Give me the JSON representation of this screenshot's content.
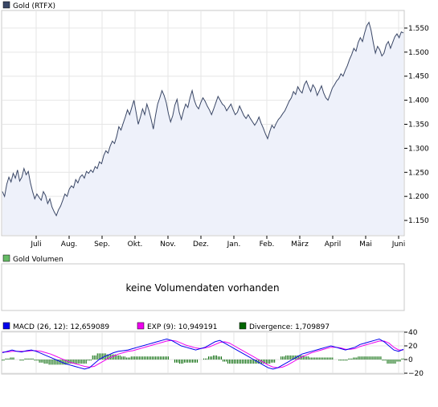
{
  "chart_data": [
    {
      "type": "area",
      "legend": {
        "label": "Gold (RTFX)",
        "color": "#3a4766"
      },
      "x_tick_labels": [
        "Juli",
        "Aug.",
        "Sep.",
        "Okt.",
        "Nov.",
        "Dez.",
        "Jan.",
        "Feb.",
        "März",
        "April",
        "Mai",
        "Juni"
      ],
      "y_ticks": [
        1150,
        1200,
        1250,
        1300,
        1350,
        1400,
        1450,
        1500,
        1550
      ],
      "y_tick_labels": [
        "1.150",
        "1.200",
        "1.250",
        "1.300",
        "1.350",
        "1.400",
        "1.450",
        "1.500",
        "1.550"
      ],
      "ylim": [
        1120,
        1585
      ],
      "grid": true,
      "colors": {
        "line": "#3a4766",
        "fill": "#eef1fa"
      },
      "series": [
        {
          "name": "Gold (RTFX)",
          "values": [
            1210,
            1200,
            1225,
            1240,
            1230,
            1248,
            1238,
            1255,
            1232,
            1240,
            1258,
            1245,
            1252,
            1228,
            1210,
            1195,
            1205,
            1198,
            1192,
            1210,
            1202,
            1185,
            1195,
            1178,
            1168,
            1160,
            1172,
            1180,
            1192,
            1205,
            1200,
            1215,
            1222,
            1218,
            1235,
            1228,
            1240,
            1245,
            1238,
            1252,
            1248,
            1255,
            1250,
            1262,
            1258,
            1272,
            1268,
            1285,
            1295,
            1290,
            1305,
            1315,
            1310,
            1325,
            1345,
            1338,
            1352,
            1365,
            1380,
            1370,
            1385,
            1400,
            1375,
            1350,
            1365,
            1382,
            1370,
            1392,
            1378,
            1360,
            1340,
            1368,
            1392,
            1405,
            1420,
            1410,
            1395,
            1372,
            1355,
            1368,
            1390,
            1402,
            1375,
            1360,
            1378,
            1392,
            1385,
            1405,
            1420,
            1400,
            1388,
            1382,
            1395,
            1405,
            1398,
            1388,
            1380,
            1370,
            1382,
            1395,
            1408,
            1400,
            1392,
            1388,
            1378,
            1385,
            1392,
            1380,
            1370,
            1375,
            1388,
            1378,
            1368,
            1362,
            1370,
            1362,
            1355,
            1348,
            1355,
            1365,
            1352,
            1342,
            1330,
            1320,
            1335,
            1348,
            1342,
            1352,
            1360,
            1365,
            1372,
            1378,
            1388,
            1398,
            1405,
            1418,
            1412,
            1428,
            1420,
            1415,
            1432,
            1440,
            1428,
            1418,
            1432,
            1425,
            1410,
            1420,
            1430,
            1415,
            1405,
            1400,
            1412,
            1425,
            1432,
            1440,
            1445,
            1455,
            1450,
            1462,
            1472,
            1485,
            1495,
            1508,
            1502,
            1520,
            1530,
            1522,
            1540,
            1555,
            1562,
            1545,
            1520,
            1498,
            1512,
            1505,
            1492,
            1498,
            1515,
            1522,
            1508,
            1520,
            1532,
            1538,
            1530,
            1542,
            1540
          ]
        }
      ]
    },
    {
      "type": "bar",
      "legend": {
        "label": "Gold Volumen",
        "color": "#66bb66"
      },
      "message": "keine Volumendaten vorhanden"
    },
    {
      "type": "line",
      "legend": [
        {
          "label": "MACD (26, 12): 12,659089",
          "color": "#0000ee"
        },
        {
          "label": "EXP (9): 10,949191",
          "color": "#ee00ee"
        },
        {
          "label": "Divergence: 1,709897",
          "color": "#006600"
        }
      ],
      "y_ticks": [
        -20,
        0,
        20,
        40
      ],
      "y_tick_labels": [
        "−20",
        "0",
        "20",
        "40"
      ],
      "ylim": [
        -20,
        40
      ],
      "grid": true,
      "series": [
        {
          "name": "MACD (26, 12)",
          "color": "#0000ee",
          "values": [
            10,
            12,
            14,
            12,
            11,
            13,
            14,
            12,
            9,
            6,
            3,
            0,
            -3,
            -6,
            -8,
            -10,
            -12,
            -14,
            -12,
            -6,
            0,
            4,
            7,
            10,
            12,
            13,
            14,
            16,
            18,
            20,
            22,
            24,
            26,
            28,
            30,
            28,
            24,
            20,
            18,
            16,
            14,
            16,
            18,
            22,
            26,
            28,
            24,
            20,
            16,
            12,
            8,
            4,
            0,
            -4,
            -8,
            -12,
            -14,
            -12,
            -8,
            -4,
            0,
            4,
            8,
            10,
            12,
            14,
            16,
            18,
            20,
            18,
            16,
            14,
            16,
            18,
            22,
            24,
            26,
            28,
            30,
            26,
            20,
            14,
            12,
            15
          ]
        },
        {
          "name": "EXP (9)",
          "color": "#ee00ee",
          "values": [
            11,
            11,
            12,
            12,
            12,
            12,
            13,
            13,
            12,
            10,
            8,
            5,
            2,
            -1,
            -4,
            -6,
            -8,
            -10,
            -11,
            -10,
            -6,
            -2,
            2,
            5,
            8,
            10,
            12,
            13,
            15,
            17,
            19,
            21,
            23,
            25,
            27,
            28,
            27,
            24,
            21,
            19,
            17,
            16,
            17,
            19,
            22,
            25,
            26,
            24,
            20,
            16,
            12,
            8,
            4,
            0,
            -4,
            -8,
            -11,
            -12,
            -11,
            -8,
            -4,
            0,
            4,
            7,
            10,
            12,
            14,
            16,
            18,
            18,
            17,
            15,
            15,
            16,
            19,
            21,
            23,
            25,
            27,
            27,
            24,
            18,
            14,
            14
          ]
        }
      ]
    }
  ]
}
